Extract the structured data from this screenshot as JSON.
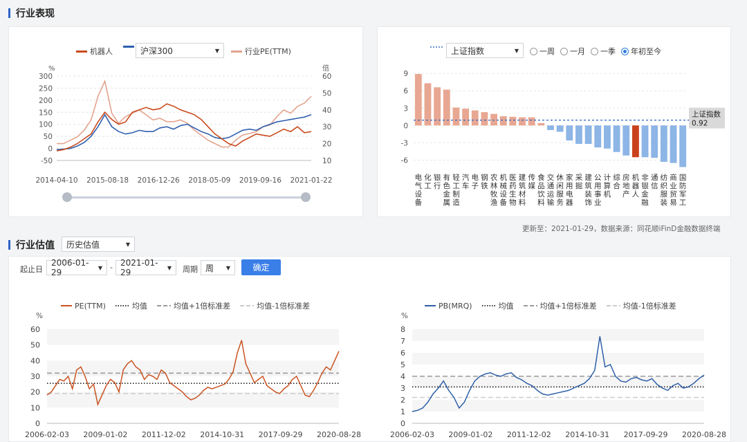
{
  "section1": {
    "title": "行业表现"
  },
  "section2": {
    "title": "行业估值",
    "dropdown": "历史估值",
    "start_label": "起止日",
    "start_date": "2006-01-29",
    "dash": "-",
    "end_date": "2021-01-29",
    "period_label": "周期",
    "period_value": "周",
    "confirm": "确定"
  },
  "update_text": "更新至：2021-01-29，数据来源：同花顺iFinD金融数据终端",
  "colors": {
    "robot": "#c94a1c",
    "hs300": "#2e5fae",
    "pe": "#e3a38d",
    "bar_pos": "#e8a792",
    "bar_neg": "#8db5e6",
    "bar_hl": "#c9411a",
    "pe_line": "#c95220",
    "pb_line": "#2d5fa8"
  },
  "chart_data": [
    {
      "type": "line",
      "legend": {
        "robot": "机器人",
        "selector": "沪深300",
        "pe": "行业PE(TTM)"
      },
      "left_unit": "%",
      "right_unit": "倍",
      "y_left_ticks": [
        -50,
        0,
        50,
        100,
        150,
        200,
        250,
        300
      ],
      "y_right_ticks": [
        10,
        20,
        30,
        40,
        50,
        60
      ],
      "x_ticks": [
        "2014-04-10",
        "2015-08-18",
        "2016-12-26",
        "2018-05-09",
        "2019-09-16",
        "2021-01-22"
      ],
      "ylim_left": [
        -50,
        300
      ],
      "ylim_right": [
        10,
        60
      ],
      "series": [
        {
          "name": "机器人",
          "axis": "left",
          "values": [
            -10,
            -5,
            5,
            20,
            40,
            60,
            110,
            150,
            120,
            100,
            110,
            150,
            160,
            170,
            160,
            165,
            185,
            175,
            160,
            150,
            140,
            120,
            90,
            60,
            40,
            20,
            10,
            30,
            45,
            60,
            55,
            50,
            65,
            80,
            70,
            90,
            65,
            70
          ]
        },
        {
          "name": "沪深300",
          "axis": "left",
          "values": [
            -5,
            -3,
            0,
            10,
            25,
            50,
            90,
            140,
            90,
            70,
            60,
            65,
            75,
            70,
            70,
            85,
            90,
            80,
            95,
            100,
            85,
            70,
            60,
            45,
            40,
            45,
            60,
            75,
            80,
            75,
            90,
            100,
            110,
            115,
            120,
            125,
            130,
            140
          ]
        },
        {
          "name": "行业PE(TTM)",
          "axis": "right",
          "values": [
            20,
            20,
            22,
            24,
            28,
            34,
            48,
            57,
            38,
            32,
            36,
            38,
            40,
            37,
            34,
            35,
            33,
            33,
            34,
            32,
            28,
            25,
            22,
            20,
            18,
            18,
            22,
            25,
            26,
            27,
            30,
            31,
            36,
            40,
            38,
            42,
            44,
            48
          ]
        }
      ]
    },
    {
      "type": "bar",
      "selector": "上证指数",
      "radios": [
        "一周",
        "一月",
        "一季",
        "年初至今"
      ],
      "radio_selected": "年初至今",
      "ref_line": {
        "name": "上证指数",
        "value": 0.92
      },
      "y_ticks": [
        -6,
        -3,
        0,
        3,
        6,
        9
      ],
      "ylim": [
        -7.5,
        9.5
      ],
      "highlight": "机器人",
      "categories": [
        "电气设备",
        "化工",
        "银行",
        "有色金属",
        "轻工制造",
        "汽车",
        "电子",
        "钢铁",
        "农林牧渔",
        "机械设备",
        "医药生物",
        "建筑材料",
        "传媒",
        "食品饮料",
        "交通运输",
        "休闲服务",
        "家用电器",
        "采掘",
        "建筑装饰",
        "公用事业",
        "计算机",
        "综合",
        "房地产",
        "机器人",
        "非银金融",
        "通信",
        "纺织服装",
        "商业贸易",
        "国防军工"
      ],
      "values": [
        8.9,
        7.3,
        6.6,
        6.2,
        3.1,
        2.9,
        2.6,
        2.3,
        2.0,
        1.6,
        1.5,
        1.4,
        1.4,
        0.4,
        -0.8,
        -1.1,
        -2.6,
        -3.2,
        -3.2,
        -3.8,
        -4.0,
        -4.6,
        -5.2,
        -5.5,
        -5.5,
        -5.6,
        -6.3,
        -6.5,
        -7.2
      ]
    },
    {
      "type": "line",
      "legend": [
        "PE(TTM)",
        "均值",
        "均值+1倍标准差",
        "均值-1倍标准差"
      ],
      "unit": "%",
      "y_ticks": [
        0,
        10,
        20,
        30,
        40,
        50,
        60
      ],
      "ylim": [
        0,
        60
      ],
      "x_ticks": [
        "2006-02-03",
        "2009-01-02",
        "2011-12-02",
        "2014-10-31",
        "2017-09-29",
        "2020-08-28"
      ],
      "mean": 25.5,
      "plus_1sd": 32,
      "minus_1sd": 19,
      "values": [
        18,
        20,
        24,
        28,
        27,
        30,
        22,
        34,
        36,
        30,
        22,
        25,
        12,
        18,
        24,
        28,
        26,
        20,
        34,
        38,
        40,
        36,
        34,
        28,
        31,
        30,
        28,
        34,
        32,
        26,
        24,
        22,
        20,
        17,
        15,
        16,
        18,
        21,
        23,
        22,
        23,
        24,
        25,
        28,
        33,
        45,
        53,
        38,
        32,
        26,
        28,
        30,
        24,
        22,
        20,
        19,
        22,
        24,
        28,
        30,
        24,
        18,
        17,
        21,
        26,
        32,
        36,
        34,
        40,
        46
      ]
    },
    {
      "type": "line",
      "legend": [
        "PB(MRQ)",
        "均值",
        "均值+1倍标准差",
        "均值-1倍标准差"
      ],
      "unit": "%",
      "y_ticks": [
        0,
        1,
        2,
        3,
        4,
        5,
        6,
        7,
        8
      ],
      "ylim": [
        0,
        8
      ],
      "x_ticks": [
        "2006-02-03",
        "2009-01-02",
        "2011-12-02",
        "2014-10-31",
        "2017-09-29",
        "2020-08-28"
      ],
      "mean": 3.1,
      "plus_1sd": 4.0,
      "minus_1sd": 2.2,
      "values": [
        1.0,
        1.1,
        1.3,
        1.8,
        2.5,
        3.0,
        3.6,
        2.8,
        2.2,
        1.3,
        1.8,
        2.8,
        3.6,
        4.0,
        4.2,
        4.3,
        4.1,
        4.0,
        4.2,
        4.3,
        3.9,
        3.7,
        3.4,
        3.2,
        2.8,
        2.5,
        2.4,
        2.5,
        2.6,
        2.7,
        2.8,
        3.0,
        3.2,
        3.4,
        3.8,
        4.5,
        7.4,
        4.8,
        5.0,
        4.0,
        3.6,
        3.5,
        3.8,
        3.9,
        3.7,
        3.6,
        3.8,
        3.3,
        3.0,
        2.8,
        3.2,
        3.4,
        3.0,
        3.1,
        3.4,
        3.8,
        4.1
      ]
    }
  ]
}
